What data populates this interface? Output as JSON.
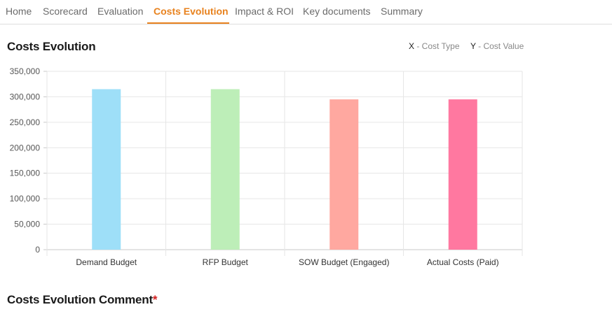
{
  "tabs": [
    {
      "label": "Home",
      "active": false
    },
    {
      "label": "Scorecard",
      "active": false
    },
    {
      "label": "Evaluation",
      "active": false
    },
    {
      "label": "Costs Evolution",
      "active": true
    },
    {
      "label": "Impact & ROI",
      "active": false
    },
    {
      "label": "Key documents",
      "active": false
    },
    {
      "label": "Summary",
      "active": false
    }
  ],
  "accent_color": "#e8821e",
  "section": {
    "title": "Costs Evolution",
    "comment_title": "Costs Evolution Comment",
    "required_mark": "*"
  },
  "axis_legend": {
    "x_key": "X",
    "x_text": " - Cost Type",
    "y_key": "Y",
    "y_text": " - Cost Value"
  },
  "chart_data": {
    "type": "bar",
    "categories": [
      "Demand Budget",
      "RFP Budget",
      "SOW Budget (Engaged)",
      "Actual Costs (Paid)"
    ],
    "values": [
      315000,
      315000,
      295000,
      295000
    ],
    "colors": [
      "#9edff8",
      "#bdeeb8",
      "#ffa8a0",
      "#ff78a0"
    ],
    "ylim": [
      0,
      350000
    ],
    "yticks": [
      "0",
      "50,000",
      "100,000",
      "150,000",
      "200,000",
      "250,000",
      "300,000",
      "350,000"
    ],
    "grid": true
  }
}
